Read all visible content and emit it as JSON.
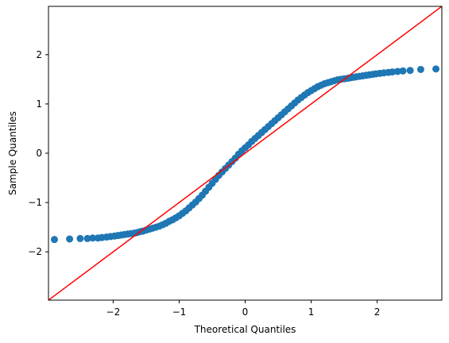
{
  "chart_data": {
    "type": "scatter",
    "title": "",
    "xlabel": "Theoretical Quantiles",
    "ylabel": "Sample Quantiles",
    "xlim": [
      -2.98,
      2.98
    ],
    "ylim": [
      -2.98,
      2.98
    ],
    "xticks": [
      -2,
      -1,
      0,
      1,
      2
    ],
    "yticks": [
      -2,
      -1,
      0,
      1,
      2
    ],
    "xtick_labels": [
      "−2",
      "−1",
      "0",
      "1",
      "2"
    ],
    "ytick_labels": [
      "−2",
      "−1",
      "0",
      "1",
      "2"
    ],
    "grid": false,
    "legend": "none",
    "series": [
      {
        "kind": "points",
        "color": "#1f77b4",
        "x": [
          -2.89,
          -2.66,
          -2.5,
          -2.39,
          -2.31,
          -2.23,
          -2.17,
          -2.1,
          -2.04,
          -1.98,
          -1.93,
          -1.88,
          -1.83,
          -1.78,
          -1.73,
          -1.68,
          -1.64,
          -1.59,
          -1.55,
          -1.5,
          -1.45,
          -1.4,
          -1.35,
          -1.3,
          -1.25,
          -1.2,
          -1.15,
          -1.1,
          -1.05,
          -1.0,
          -0.95,
          -0.9,
          -0.85,
          -0.8,
          -0.75,
          -0.7,
          -0.65,
          -0.6,
          -0.55,
          -0.5,
          -0.45,
          -0.4,
          -0.35,
          -0.3,
          -0.25,
          -0.2,
          -0.15,
          -0.1,
          -0.05,
          0.0,
          0.05,
          0.1,
          0.15,
          0.2,
          0.25,
          0.3,
          0.35,
          0.4,
          0.45,
          0.5,
          0.55,
          0.6,
          0.65,
          0.7,
          0.75,
          0.8,
          0.85,
          0.9,
          0.95,
          1.0,
          1.05,
          1.1,
          1.15,
          1.2,
          1.25,
          1.3,
          1.35,
          1.4,
          1.45,
          1.5,
          1.55,
          1.59,
          1.64,
          1.68,
          1.73,
          1.78,
          1.83,
          1.88,
          1.93,
          1.98,
          2.04,
          2.1,
          2.17,
          2.23,
          2.31,
          2.39,
          2.5,
          2.66,
          2.89
        ],
        "y": [
          -1.75,
          -1.74,
          -1.73,
          -1.73,
          -1.72,
          -1.72,
          -1.71,
          -1.7,
          -1.69,
          -1.68,
          -1.67,
          -1.66,
          -1.65,
          -1.64,
          -1.63,
          -1.62,
          -1.61,
          -1.59,
          -1.58,
          -1.56,
          -1.54,
          -1.52,
          -1.5,
          -1.48,
          -1.45,
          -1.42,
          -1.38,
          -1.35,
          -1.31,
          -1.27,
          -1.22,
          -1.17,
          -1.11,
          -1.05,
          -0.99,
          -0.92,
          -0.85,
          -0.77,
          -0.69,
          -0.61,
          -0.53,
          -0.45,
          -0.38,
          -0.31,
          -0.24,
          -0.17,
          -0.1,
          -0.02,
          0.05,
          0.11,
          0.17,
          0.24,
          0.3,
          0.36,
          0.42,
          0.48,
          0.54,
          0.6,
          0.66,
          0.72,
          0.78,
          0.84,
          0.9,
          0.96,
          1.02,
          1.08,
          1.13,
          1.18,
          1.23,
          1.27,
          1.31,
          1.35,
          1.38,
          1.41,
          1.43,
          1.45,
          1.47,
          1.49,
          1.5,
          1.51,
          1.52,
          1.53,
          1.54,
          1.55,
          1.56,
          1.57,
          1.58,
          1.59,
          1.6,
          1.61,
          1.62,
          1.63,
          1.64,
          1.65,
          1.66,
          1.67,
          1.68,
          1.7,
          1.71
        ]
      },
      {
        "kind": "reference-line",
        "color": "#ff0000",
        "x": [
          -2.98,
          2.98
        ],
        "y": [
          -2.98,
          2.98
        ]
      }
    ]
  }
}
